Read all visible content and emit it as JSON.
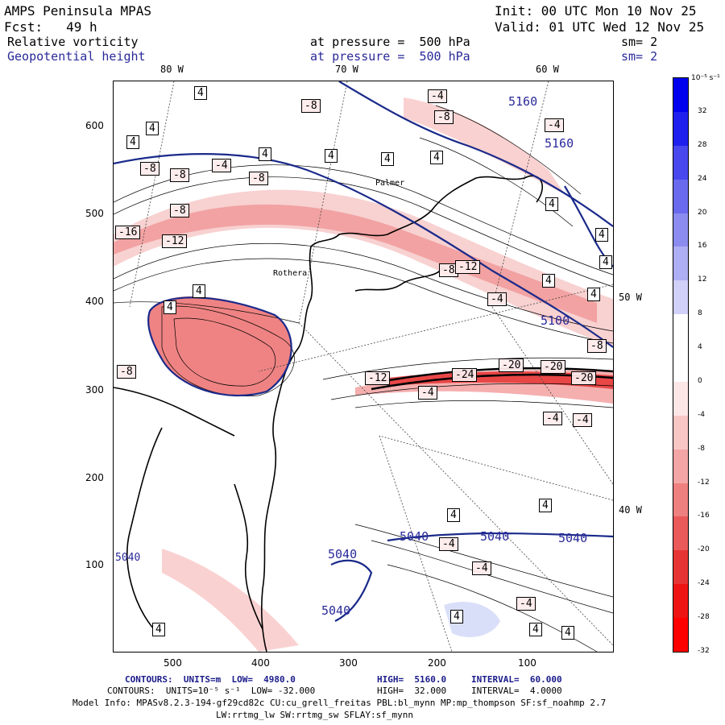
{
  "header": {
    "model": "AMPS Peninsula MPAS",
    "init": "Init: 00 UTC Mon 10 Nov 25",
    "fcst": "Fcst:   49 h",
    "valid": "Valid: 01 UTC Wed 12 Nov 25",
    "var1": "Relative vorticity",
    "var1_level": "at pressure =  500 hPa",
    "var1_sm": "sm= 2",
    "var2": "Geopotential height",
    "var2_level": "at pressure =  500 hPa",
    "var2_sm": "sm= 2"
  },
  "map": {
    "top_lon_labels": [
      "80 W",
      "70 W",
      "60 W"
    ],
    "right_lat_labels": [
      "50 W",
      "40 W"
    ],
    "place_labels": [
      "Palmer",
      "Rothera"
    ],
    "y_ticks": [
      "600",
      "500",
      "400",
      "300",
      "200",
      "100"
    ],
    "x_ticks": [
      "500",
      "400",
      "300",
      "200",
      "100"
    ],
    "height_contour_labels": [
      "5160",
      "5160",
      "5100",
      "5040",
      "5040",
      "5040",
      "5040",
      "5040",
      "5040"
    ],
    "vorticity_labels": [
      "4",
      "4",
      "4",
      "4",
      "4",
      "4",
      "4",
      "4",
      "4",
      "4",
      "4",
      "4",
      "4",
      "4",
      "4",
      "4",
      "4",
      "4",
      "4",
      "4",
      "-4",
      "-4",
      "-4",
      "-4",
      "-4",
      "-4",
      "-4",
      "-4",
      "-4",
      "-4",
      "-8",
      "-8",
      "-8",
      "-8",
      "-8",
      "-8",
      "-8",
      "-8",
      "-8",
      "-12",
      "-12",
      "-12",
      "-16",
      "-20",
      "-20",
      "-24",
      "-20"
    ]
  },
  "colorbar": {
    "unit": "10⁻⁵ s⁻¹",
    "labels": [
      "32",
      "28",
      "24",
      "20",
      "16",
      "12",
      "8",
      "4",
      "0",
      "-4",
      "-8",
      "-12",
      "-16",
      "-20",
      "-24",
      "-28",
      "-32"
    ],
    "colors": [
      "#0000ee",
      "#2020ee",
      "#4848ee",
      "#6a6aee",
      "#8c8cf0",
      "#aeaef4",
      "#d0d0f8",
      "#ffffff",
      "#ffffff",
      "#fde6e6",
      "#f9c6c6",
      "#f4a6a6",
      "#ef8080",
      "#ea5a5a",
      "#e63434",
      "#ee1414",
      "#ff0000"
    ]
  },
  "footer": {
    "line1_a": "CONTOURS:  UNITS=m  LOW=  4980.0",
    "line1_b": "HIGH=  5160.0",
    "line1_c": "INTERVAL=  60.000",
    "line2_a": "CONTOURS:  UNITS=10⁻⁵ s⁻¹  LOW= -32.000",
    "line2_b": "HIGH=  32.000",
    "line2_c": "INTERVAL=  4.0000",
    "line3": "Model Info: MPASv8.2.3-194-gf29cd82c CU:cu_grell_freitas PBL:bl_mynn MP:mp_thompson SF:sf_noahmp 2.7",
    "line4": "LW:rrtmg_lw SW:rrtmg_sw SFLAY:sf_mynn"
  }
}
